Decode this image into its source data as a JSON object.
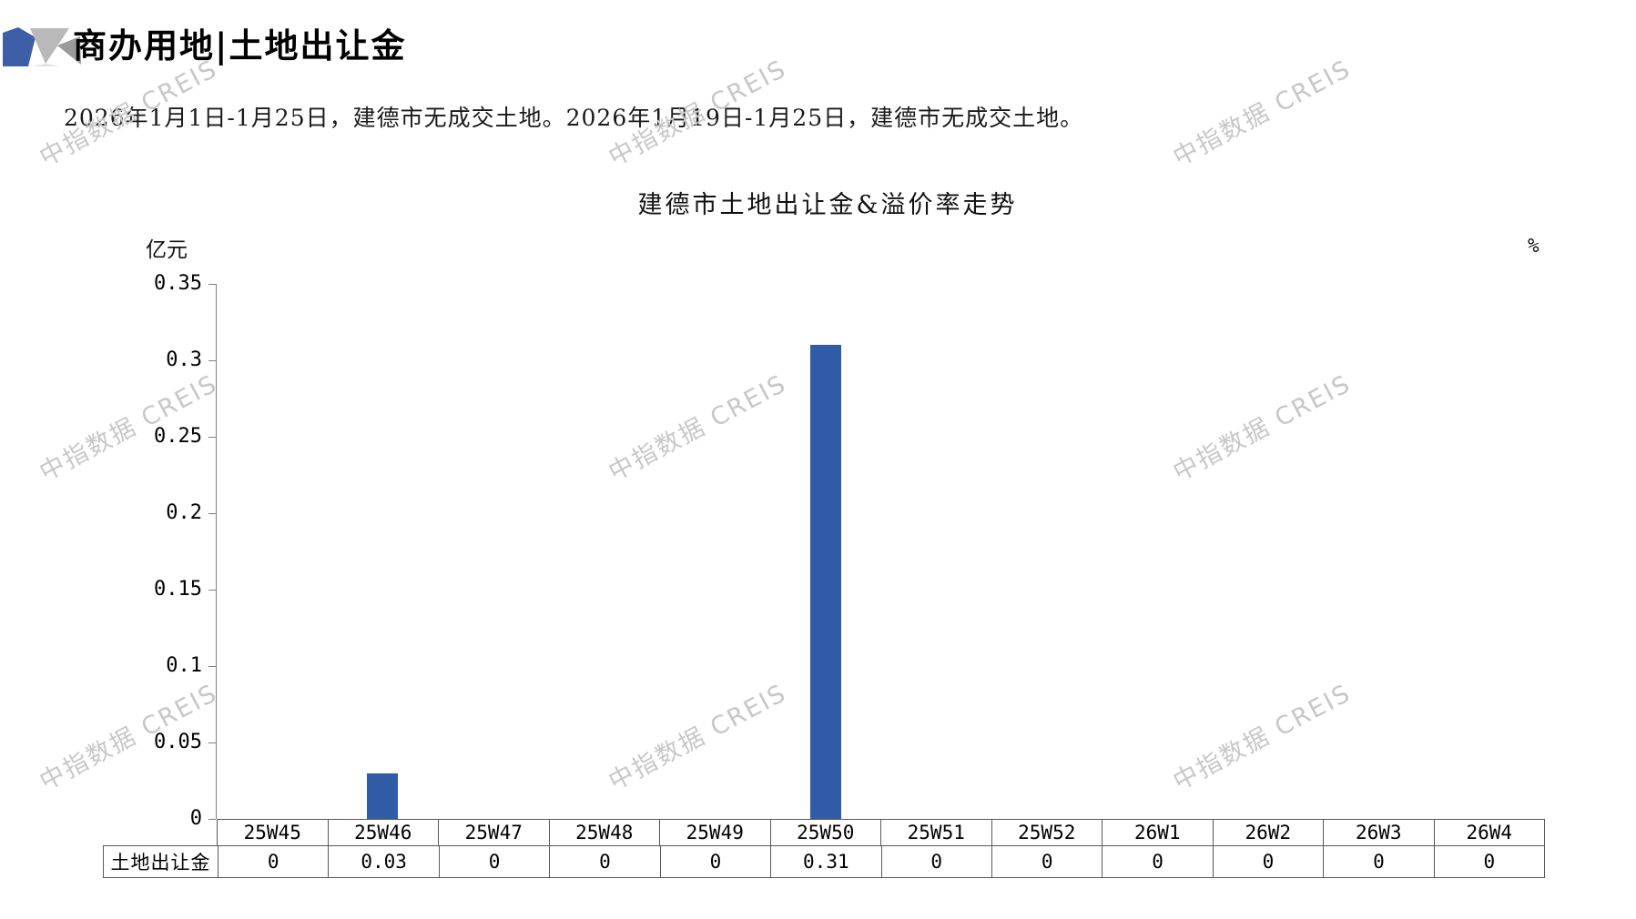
{
  "header": {
    "title": "商办用地|土地出让金",
    "logo": "creis-ribbon-logo",
    "logo_colors": {
      "blue": "#3f5ea8",
      "gray_light": "#b9b9b9",
      "gray_pale": "#e2e2e2",
      "gray_mid": "#9a9a9a"
    }
  },
  "summary": "2026年1月1日-1月25日，建德市无成交土地。2026年1月19日-1月25日，建德市无成交土地。",
  "watermark": {
    "text": "中指数据 CREIS",
    "color": "#c7c7c7"
  },
  "chart_data": {
    "type": "bar",
    "title": "建德市土地出让金&溢价率走势",
    "left_axis_unit": "亿元",
    "right_axis_unit": "%",
    "categories": [
      "25W45",
      "25W46",
      "25W47",
      "25W48",
      "25W49",
      "25W50",
      "25W51",
      "25W52",
      "26W1",
      "26W2",
      "26W3",
      "26W4"
    ],
    "series": [
      {
        "name": "土地出让金",
        "values": [
          0,
          0.03,
          0,
          0,
          0,
          0.31,
          0,
          0,
          0,
          0,
          0,
          0
        ],
        "color": "#2f5ba7"
      }
    ],
    "ylim": [
      0,
      0.35
    ],
    "ytick_labels": [
      "0",
      "0.05",
      "0.1",
      "0.15",
      "0.2",
      "0.25",
      "0.3",
      "0.35"
    ],
    "grid": false,
    "legend_position": "table-row",
    "axis_color": "#7f7f7f"
  },
  "table": {
    "row_header": "土地出让金",
    "columns": [
      "25W45",
      "25W46",
      "25W47",
      "25W48",
      "25W49",
      "25W50",
      "25W51",
      "25W52",
      "26W1",
      "26W2",
      "26W3",
      "26W4"
    ],
    "values": [
      "0",
      "0.03",
      "0",
      "0",
      "0",
      "0.31",
      "0",
      "0",
      "0",
      "0",
      "0",
      "0"
    ]
  }
}
